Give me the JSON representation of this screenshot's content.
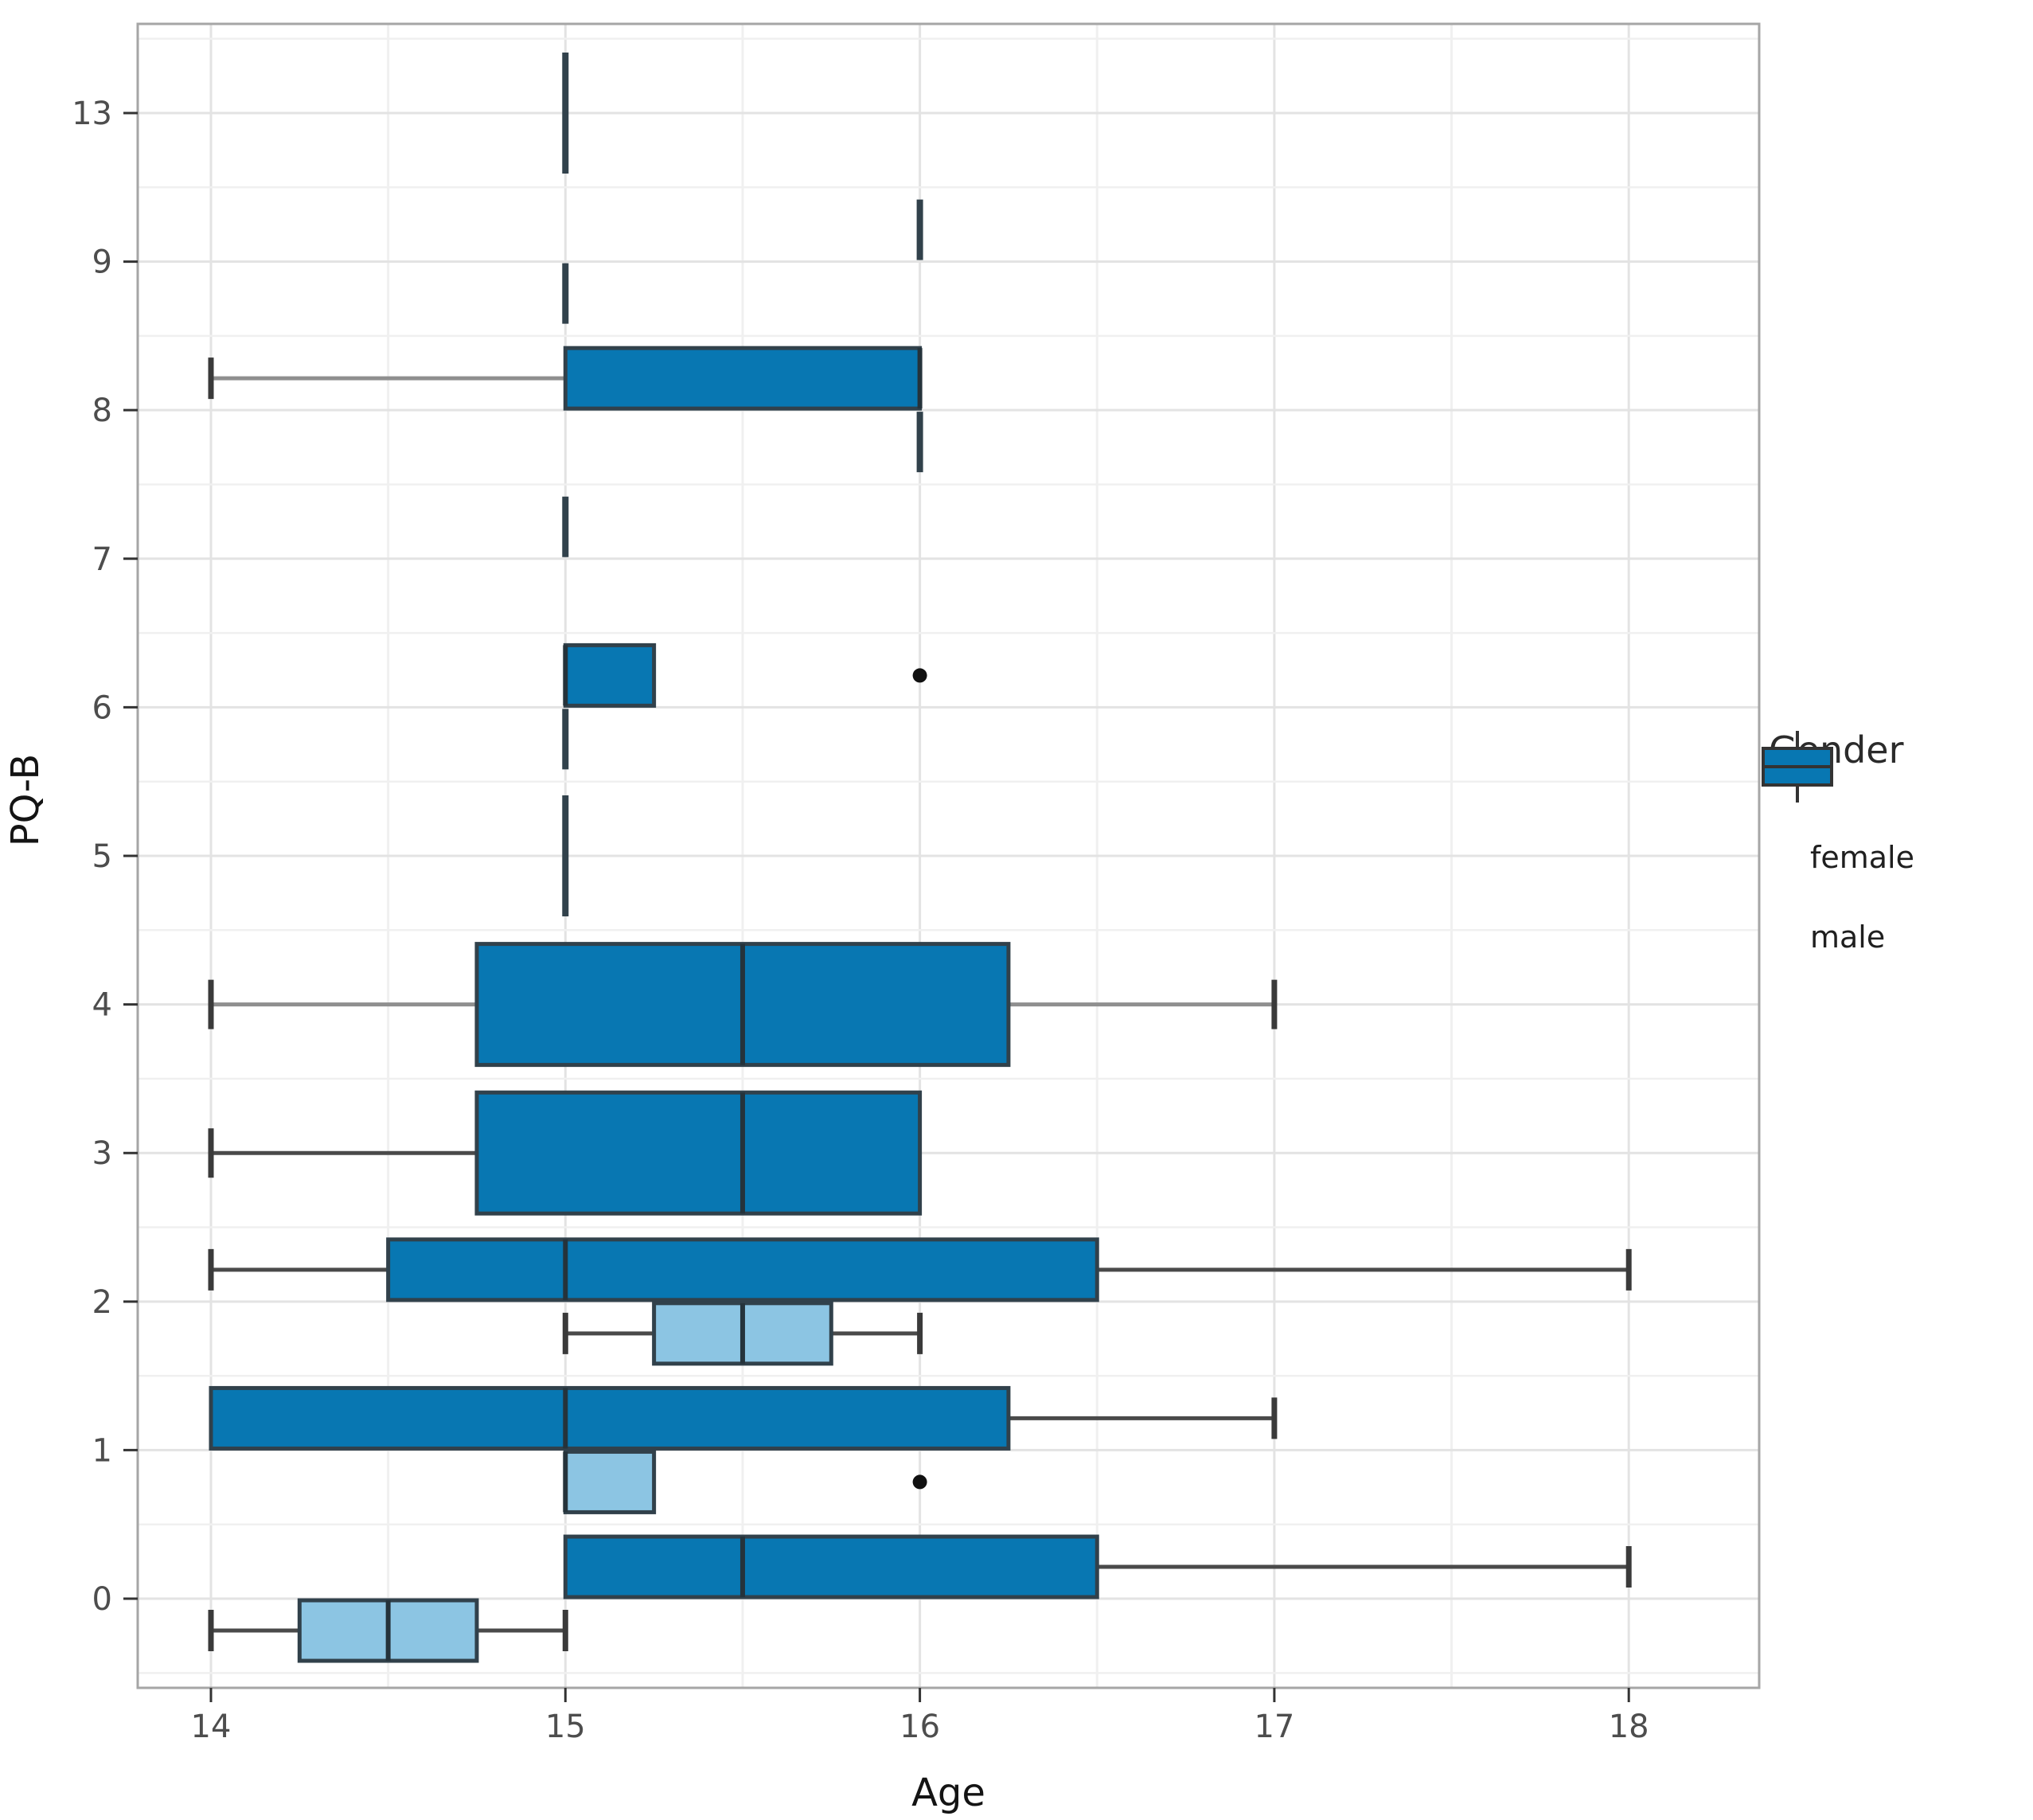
{
  "chart_data": {
    "type": "boxplot",
    "orientation": "horizontal",
    "title": "",
    "xlabel": "Age",
    "ylabel": "PQ-B",
    "x_ticks": [
      14,
      15,
      16,
      17,
      18
    ],
    "x_minor_ticks": [
      14.5,
      15.5,
      16.5,
      17.5
    ],
    "x_range": [
      13.79,
      18.37
    ],
    "y_categories_top_to_bottom": [
      "13",
      "9",
      "8",
      "7",
      "6",
      "5",
      "4",
      "3",
      "2",
      "1",
      "0"
    ],
    "grid": "major and minor, light gray on white, gray panel border",
    "legend": {
      "title": "Gender",
      "position": "right",
      "entries": [
        {
          "label": "female",
          "color": "#8CC5E3"
        },
        {
          "label": "male",
          "color": "#0877B2"
        }
      ]
    },
    "boxes": [
      {
        "category": "13",
        "gender": "male",
        "width": "full",
        "min": 15,
        "q1": 15,
        "med": 15,
        "q3": 15,
        "max": 15
      },
      {
        "category": "9",
        "gender": "male",
        "width": "half",
        "min": 16,
        "q1": 16,
        "med": 16,
        "q3": 16,
        "max": 16
      },
      {
        "category": "9",
        "gender": "female",
        "width": "half",
        "min": 15,
        "q1": 15,
        "med": 15,
        "q3": 15,
        "max": 15
      },
      {
        "category": "8",
        "gender": "male",
        "width": "half",
        "min": 14,
        "q1": 15,
        "med": 16,
        "q3": 16,
        "max": 16,
        "whisker_shade": "light"
      },
      {
        "category": "8",
        "gender": "female",
        "width": "half",
        "min": 16,
        "q1": 16,
        "med": 16,
        "q3": 16,
        "max": 16
      },
      {
        "category": "7",
        "gender": "male",
        "width": "half",
        "min": 15,
        "q1": 15,
        "med": 15,
        "q3": 15,
        "max": 15
      },
      {
        "category": "6",
        "gender": "male",
        "width": "half",
        "min": 15,
        "q1": 15,
        "med": 15,
        "q3": 15.25,
        "max": 15.25
      },
      {
        "category": "6",
        "gender": "female",
        "width": "half",
        "min": 15,
        "q1": 15,
        "med": 15,
        "q3": 15,
        "max": 15
      },
      {
        "category": "5",
        "gender": "male",
        "width": "full",
        "min": 15,
        "q1": 15,
        "med": 15,
        "q3": 15,
        "max": 15
      },
      {
        "category": "4",
        "gender": "male",
        "width": "full",
        "min": 14,
        "q1": 14.75,
        "med": 15.5,
        "q3": 16.25,
        "max": 17,
        "whisker_shade": "light"
      },
      {
        "category": "3",
        "gender": "male",
        "width": "full",
        "min": 14,
        "q1": 14.75,
        "med": 15.5,
        "q3": 16,
        "max": 16
      },
      {
        "category": "2",
        "gender": "male",
        "width": "half",
        "min": 14,
        "q1": 14.5,
        "med": 15,
        "q3": 16.5,
        "max": 18
      },
      {
        "category": "2",
        "gender": "female",
        "width": "half",
        "min": 15,
        "q1": 15.25,
        "med": 15.5,
        "q3": 15.75,
        "max": 16
      },
      {
        "category": "1",
        "gender": "male",
        "width": "half",
        "min": 14,
        "q1": 14,
        "med": 15,
        "q3": 16.25,
        "max": 17
      },
      {
        "category": "1",
        "gender": "female",
        "width": "half",
        "min": 15,
        "q1": 15,
        "med": 15,
        "q3": 15.25,
        "max": 15.25
      },
      {
        "category": "0",
        "gender": "male",
        "width": "half",
        "min": 15,
        "q1": 15,
        "med": 15.5,
        "q3": 16.5,
        "max": 18
      },
      {
        "category": "0",
        "gender": "female",
        "width": "half",
        "min": 14,
        "q1": 14.25,
        "med": 14.5,
        "q3": 14.75,
        "max": 15
      }
    ],
    "outliers": [
      {
        "category": "6",
        "gender": "male",
        "x": 16
      },
      {
        "category": "1",
        "gender": "female",
        "x": 16
      }
    ]
  },
  "colors": {
    "female_fill": "#8CC5E3",
    "male_fill": "#0877B2",
    "box_border": "#31414b",
    "median": "#25333b",
    "whisker_dark": "#4a4a4a",
    "whisker_light": "#8f8f8f",
    "whisker_cap": "#3a3a3a",
    "grid_major": "#e3e3e3",
    "grid_minor": "#f0f0f0",
    "panel_border": "#a6a6a6",
    "tick_mark": "#333333",
    "tick_label": "#4d4d4d",
    "axis_title": "#141414",
    "outlier": "#111111",
    "background": "#ffffff"
  }
}
